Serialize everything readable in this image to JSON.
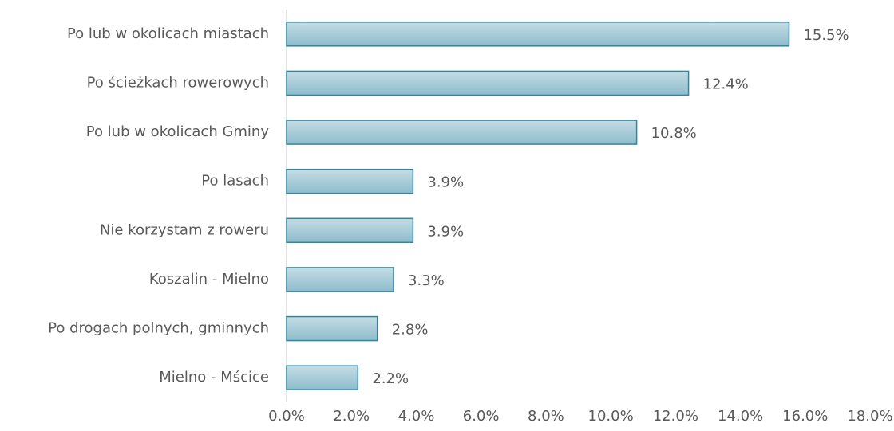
{
  "chart_data": {
    "type": "bar",
    "orientation": "horizontal",
    "categories": [
      "Po lub w okolicach miastach",
      "Po ścieżkach rowerowych",
      "Po lub w okolicach Gminy",
      "Po lasach",
      "Nie korzystam z roweru",
      "Koszalin - Mielno",
      "Po drogach polnych, gminnych",
      "Mielno - Mścice"
    ],
    "values": [
      15.5,
      12.4,
      10.8,
      3.9,
      3.9,
      3.3,
      2.8,
      2.2
    ],
    "value_labels": [
      "15.5%",
      "12.4%",
      "10.8%",
      "3.9%",
      "3.9%",
      "3.3%",
      "2.8%",
      "2.2%"
    ],
    "color": "#31859c",
    "xlim": [
      0,
      18
    ],
    "xticks": [
      {
        "value": 0,
        "label": "0.0%"
      },
      {
        "value": 2,
        "label": "2.0%"
      },
      {
        "value": 4,
        "label": "4.0%"
      },
      {
        "value": 6,
        "label": "6.0%"
      },
      {
        "value": 8,
        "label": "8.0%"
      },
      {
        "value": 10,
        "label": "10.0%"
      },
      {
        "value": 12,
        "label": "12.0%"
      },
      {
        "value": 14,
        "label": "14.0%"
      },
      {
        "value": 16,
        "label": "16.0%"
      },
      {
        "value": 18,
        "label": "18.0%"
      }
    ],
    "grid": false
  }
}
